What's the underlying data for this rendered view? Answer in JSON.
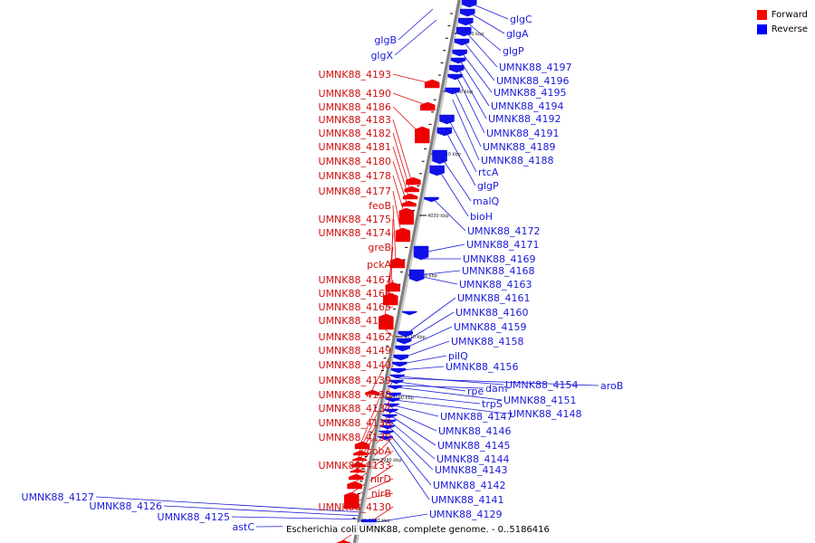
{
  "legend": {
    "forward_label": "Forward",
    "reverse_label": "Reverse",
    "forward_color": "#ff0000",
    "reverse_color": "#0000ff"
  },
  "caption": "Escherichia coli UMNK88, complete genome. - 0..5186416",
  "ticks": [
    "4060 kbp",
    "4050 kbp",
    "4040 kbp",
    "4030 kbp",
    "4020 kbp",
    "4010 kbp",
    "4000 kbp",
    "3990 kbp",
    "3980 kbp"
  ],
  "forward_labels": [
    "UMNK88_4193",
    "UMNK88_4190",
    "UMNK88_4186",
    "UMNK88_4183",
    "UMNK88_4182",
    "UMNK88_4181",
    "UMNK88_4180",
    "UMNK88_4178",
    "UMNK88_4177",
    "feoB",
    "UMNK88_4175",
    "UMNK88_4174",
    "greB",
    "pckA",
    "UMNK88_4167",
    "UMNK88_4166",
    "UMNK88_4165",
    "UMNK88_4164",
    "UMNK88_4162",
    "UMNK88_4149",
    "UMNK88_4140",
    "UMNK88_4139",
    "UMNK88_4138",
    "UMNK88_4137",
    "UMNK88_4136",
    "UMNK88_4135",
    "cobA",
    "UMNK88_4133",
    "nirD",
    "nirB",
    "UMNK88_4130"
  ],
  "reverse_labels": [
    "glgC",
    "glgA",
    "glgP",
    "UMNK88_4197",
    "UMNK88_4196",
    "UMNK88_4195",
    "UMNK88_4194",
    "UMNK88_4192",
    "UMNK88_4191",
    "UMNK88_4189",
    "UMNK88_4188",
    "rtcA",
    "glgP",
    "malQ",
    "bioH",
    "UMNK88_4172",
    "UMNK88_4171",
    "UMNK88_4169",
    "UMNK88_4168",
    "UMNK88_4163",
    "UMNK88_4161",
    "UMNK88_4160",
    "UMNK88_4159",
    "UMNK88_4158",
    "pilQ",
    "UMNK88_4156",
    "UMNK88_4154",
    "aroB",
    "rpe",
    "dam",
    "UMNK88_4151",
    "trpS",
    "UMNK88_4148",
    "UMNK88_4147",
    "UMNK88_4146",
    "UMNK88_4145",
    "UMNK88_4144",
    "UMNK88_4143",
    "UMNK88_4142",
    "UMNK88_4141",
    "UMNK88_4129"
  ],
  "left_reverse_labels": [
    "glgB",
    "glgX",
    "UMNK88_4127",
    "UMNK88_4126",
    "UMNK88_4125",
    "astC"
  ]
}
